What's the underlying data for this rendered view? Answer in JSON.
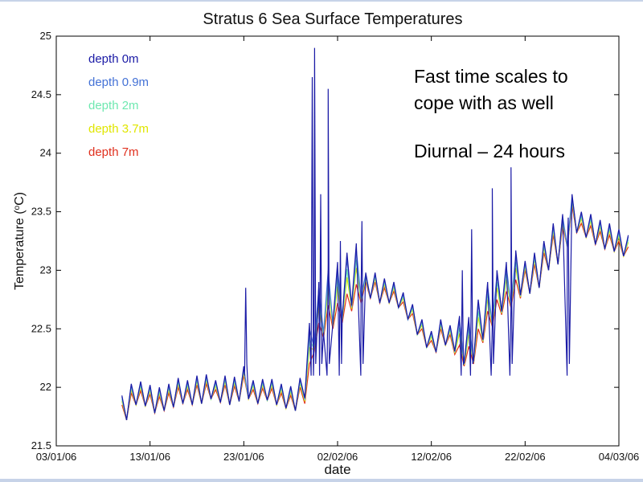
{
  "chart_data": {
    "type": "line",
    "title": "Stratus 6 Sea Surface Temperatures",
    "xlabel": "date",
    "ylabel": "Temperature (°C)",
    "ylabel_main": "Temperature (",
    "ylabel_sup": "o",
    "ylabel_end": "C)",
    "x_range_days": [
      0,
      60
    ],
    "x_ticks": [
      {
        "day": 0,
        "label": "03/01/06"
      },
      {
        "day": 10,
        "label": "13/01/06"
      },
      {
        "day": 20,
        "label": "23/01/06"
      },
      {
        "day": 30,
        "label": "02/02/06"
      },
      {
        "day": 40,
        "label": "12/02/06"
      },
      {
        "day": 50,
        "label": "22/02/06"
      },
      {
        "day": 60,
        "label": "04/03/06"
      }
    ],
    "ylim": [
      21.5,
      25
    ],
    "y_ticks": [
      "21.5",
      "22",
      "22.5",
      "23",
      "23.5",
      "24",
      "24.5",
      "25"
    ],
    "sampling": {
      "start_day": 7.0,
      "step_days": 0.5
    },
    "baseline": [
      21.85,
      21.72,
      21.95,
      21.85,
      21.97,
      21.84,
      21.94,
      21.78,
      21.92,
      21.8,
      21.95,
      21.83,
      22.0,
      21.86,
      21.98,
      21.85,
      22.02,
      21.86,
      22.03,
      21.9,
      21.98,
      21.87,
      22.02,
      21.85,
      22.01,
      21.88,
      22.1,
      21.9,
      21.98,
      21.86,
      21.99,
      21.89,
      21.99,
      21.85,
      21.95,
      21.82,
      21.93,
      21.8,
      22.0,
      21.86,
      22.2,
      22.3,
      22.55,
      22.42,
      22.7,
      22.5,
      22.72,
      22.55,
      22.8,
      22.65,
      22.88,
      22.72,
      22.9,
      22.76,
      22.9,
      22.72,
      22.85,
      22.72,
      22.82,
      22.68,
      22.73,
      22.58,
      22.63,
      22.45,
      22.5,
      22.34,
      22.4,
      22.3,
      22.5,
      22.36,
      22.45,
      22.28,
      22.36,
      22.18,
      22.35,
      22.2,
      22.5,
      22.38,
      22.65,
      22.52,
      22.75,
      22.62,
      22.82,
      22.68,
      22.92,
      22.76,
      23.0,
      22.8,
      23.05,
      22.85,
      23.15,
      23.0,
      23.3,
      23.05,
      23.38,
      23.2,
      23.55,
      23.32,
      23.4,
      23.28,
      23.38,
      23.22,
      23.33,
      23.18,
      23.3,
      23.16,
      23.25,
      23.12,
      23.2
    ],
    "series": [
      {
        "name": "depth 0m",
        "color": "#1a1aa6",
        "factor": 1.0,
        "spikes": [
          {
            "day": 20.2,
            "value": 22.85
          },
          {
            "day": 27.3,
            "value": 24.65
          },
          {
            "day": 27.55,
            "value": 24.9
          },
          {
            "day": 28.2,
            "value": 23.65
          },
          {
            "day": 29.0,
            "value": 24.55
          },
          {
            "day": 30.3,
            "value": 23.25
          },
          {
            "day": 32.6,
            "value": 23.42
          },
          {
            "day": 43.3,
            "value": 23.0
          },
          {
            "day": 44.3,
            "value": 23.35
          },
          {
            "day": 46.5,
            "value": 23.7
          },
          {
            "day": 48.5,
            "value": 23.88
          },
          {
            "day": 54.6,
            "value": 23.45
          }
        ]
      },
      {
        "name": "depth 0.9m",
        "color": "#4472d6",
        "factor": 0.85,
        "spikes": []
      },
      {
        "name": "depth 2m",
        "color": "#6ee8b0",
        "factor": 0.6,
        "spikes": []
      },
      {
        "name": "depth 3.7m",
        "color": "#e0e600",
        "factor": 0.4,
        "spikes": []
      },
      {
        "name": "depth 7m",
        "color": "#e0301e",
        "factor": 0.0,
        "spikes": []
      }
    ],
    "legend_position": "top-left"
  },
  "annotations": [
    "Fast time scales to",
    "cope with as well",
    "Diurnal – 24 hours"
  ]
}
